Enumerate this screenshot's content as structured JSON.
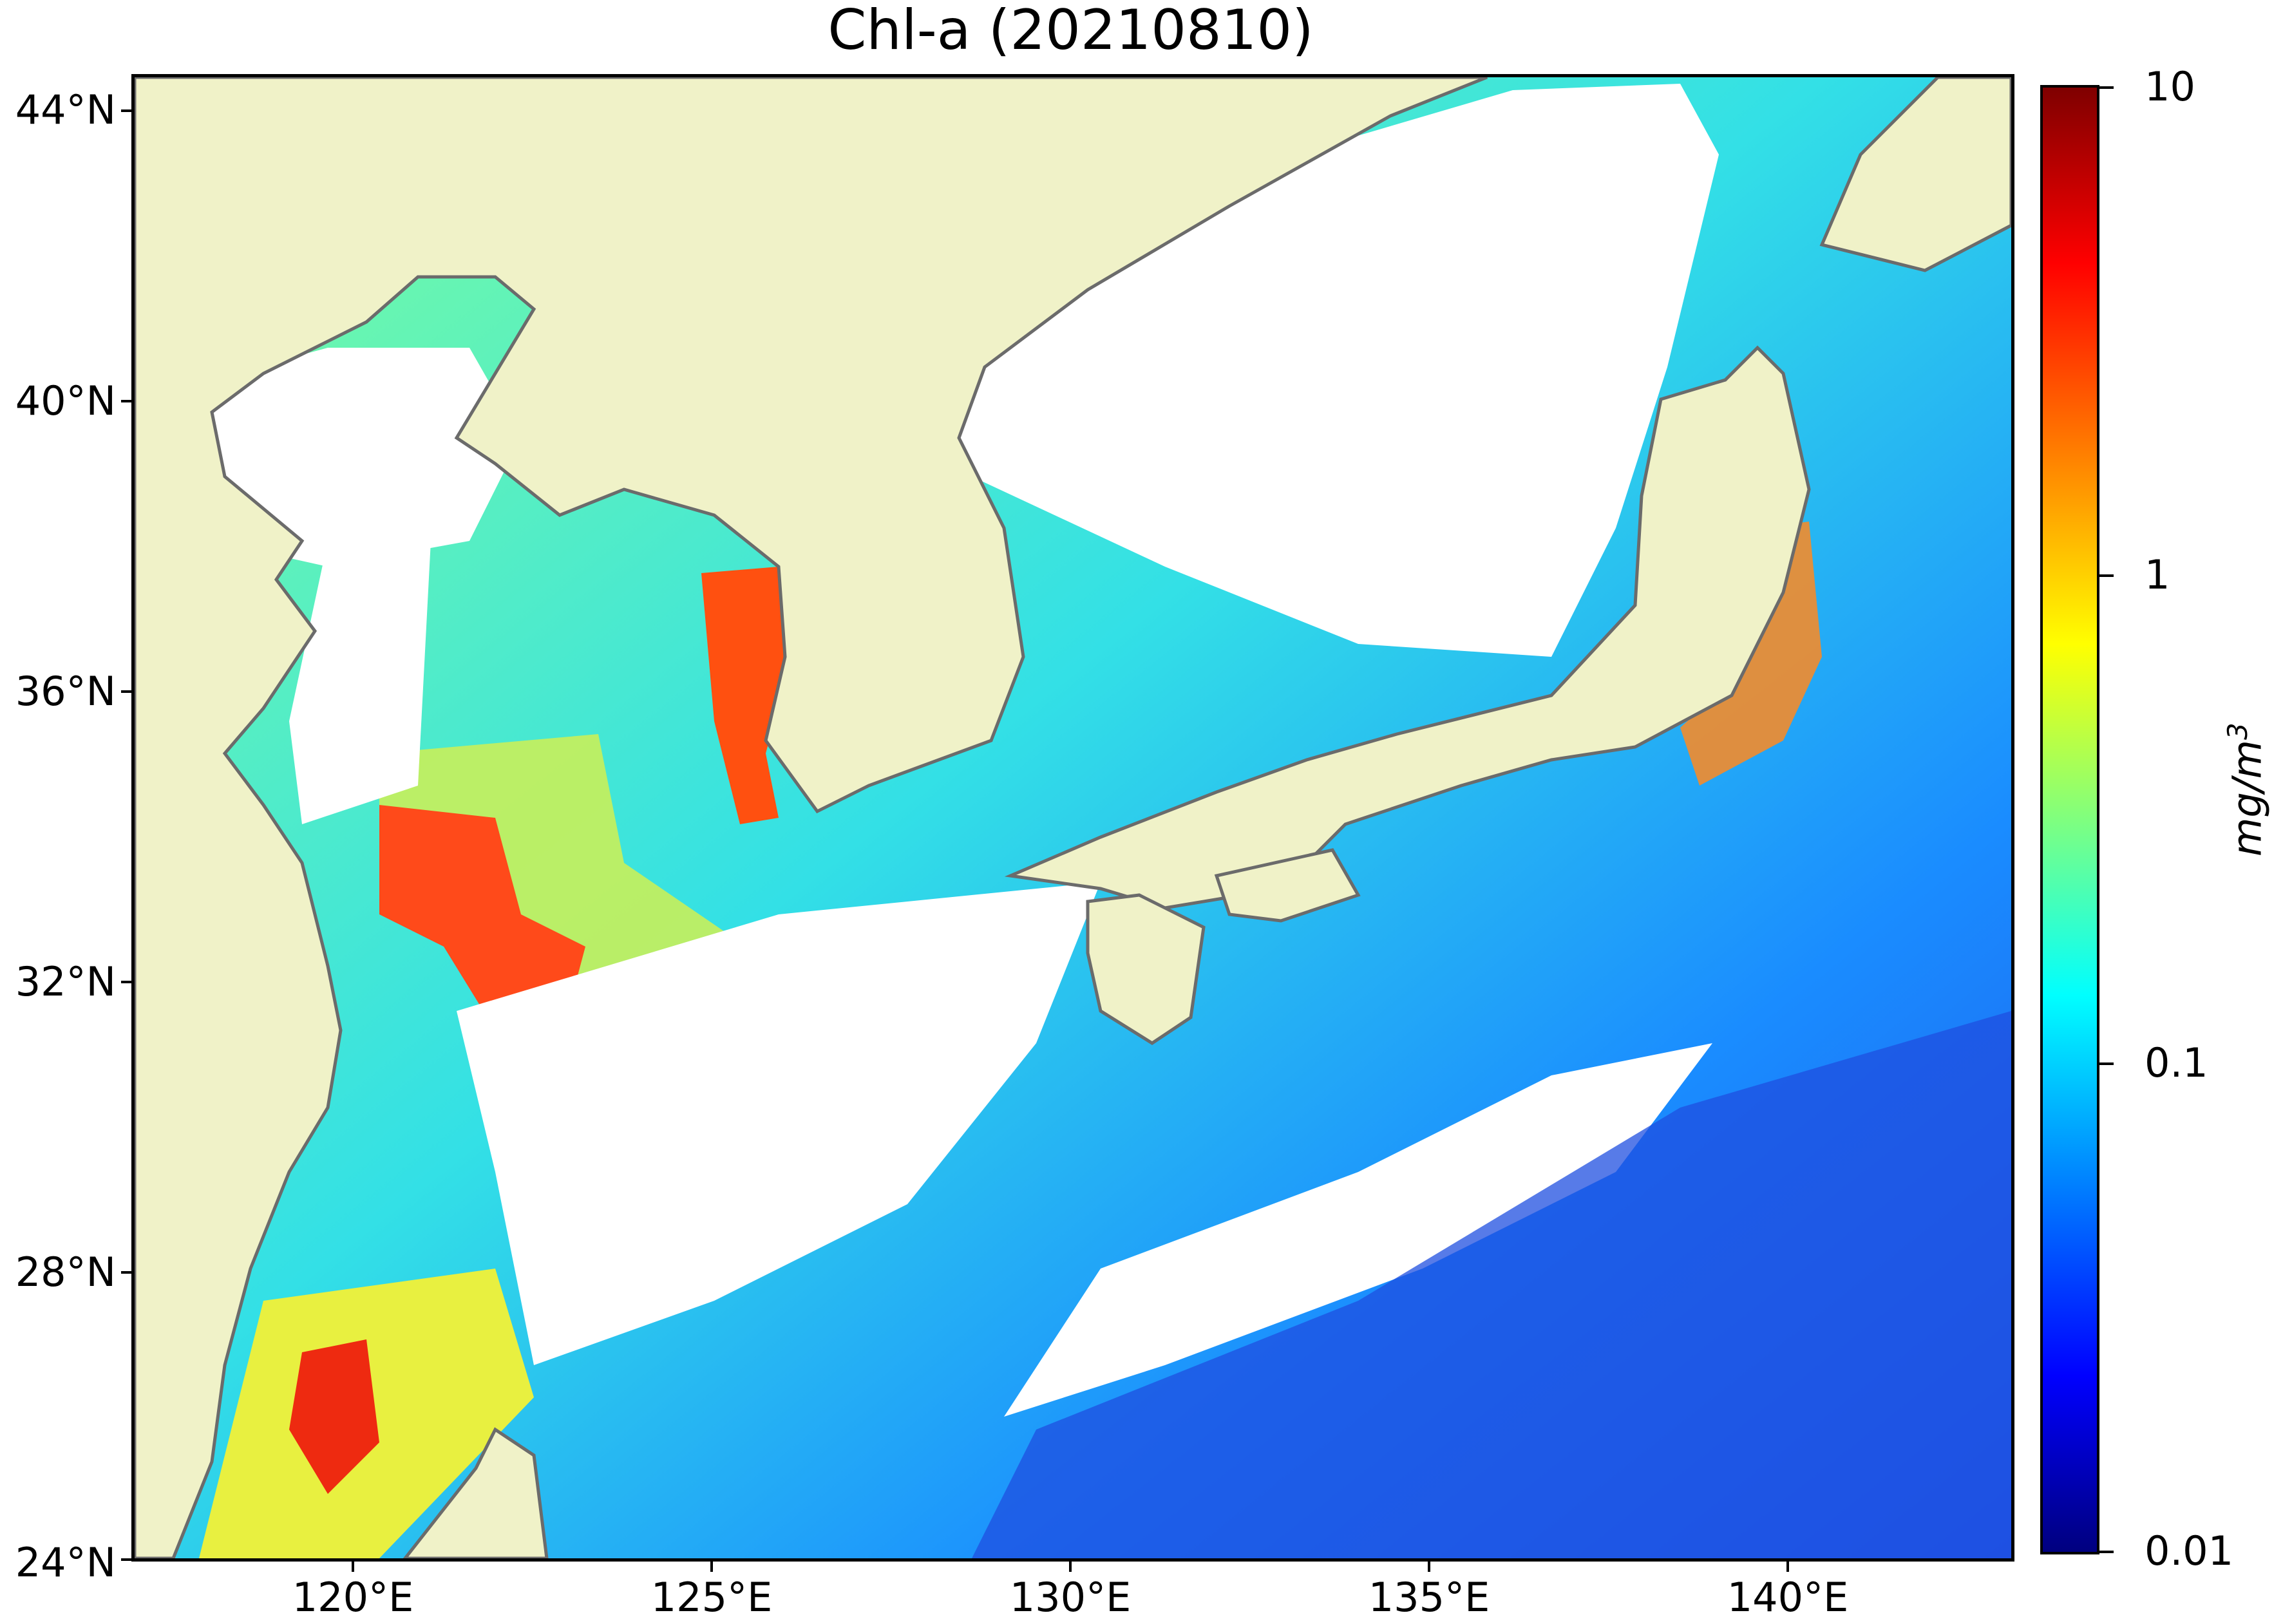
{
  "title": "Chl-a (20210810)",
  "map": {
    "lat_labels": [
      "44°N",
      "40°N",
      "36°N",
      "32°N",
      "28°N",
      "24°N"
    ],
    "lon_labels": [
      "120°E",
      "125°E",
      "130°E",
      "135°E",
      "140°E"
    ],
    "extent": {
      "lon_min": 116.9,
      "lon_max": 143.1,
      "lat_min": 24,
      "lat_max": 44.5
    }
  },
  "colorbar": {
    "tick_labels": [
      "10",
      "1",
      "0.1",
      "0.01"
    ],
    "unit_main": "mg/m",
    "unit_exp": "3",
    "scale": "log",
    "range": [
      0.01,
      10
    ],
    "colormap": "jet"
  },
  "colors": {
    "land": "#f0f2c8",
    "cloud": "#ffffff",
    "coast": "#6b6b6b"
  }
}
